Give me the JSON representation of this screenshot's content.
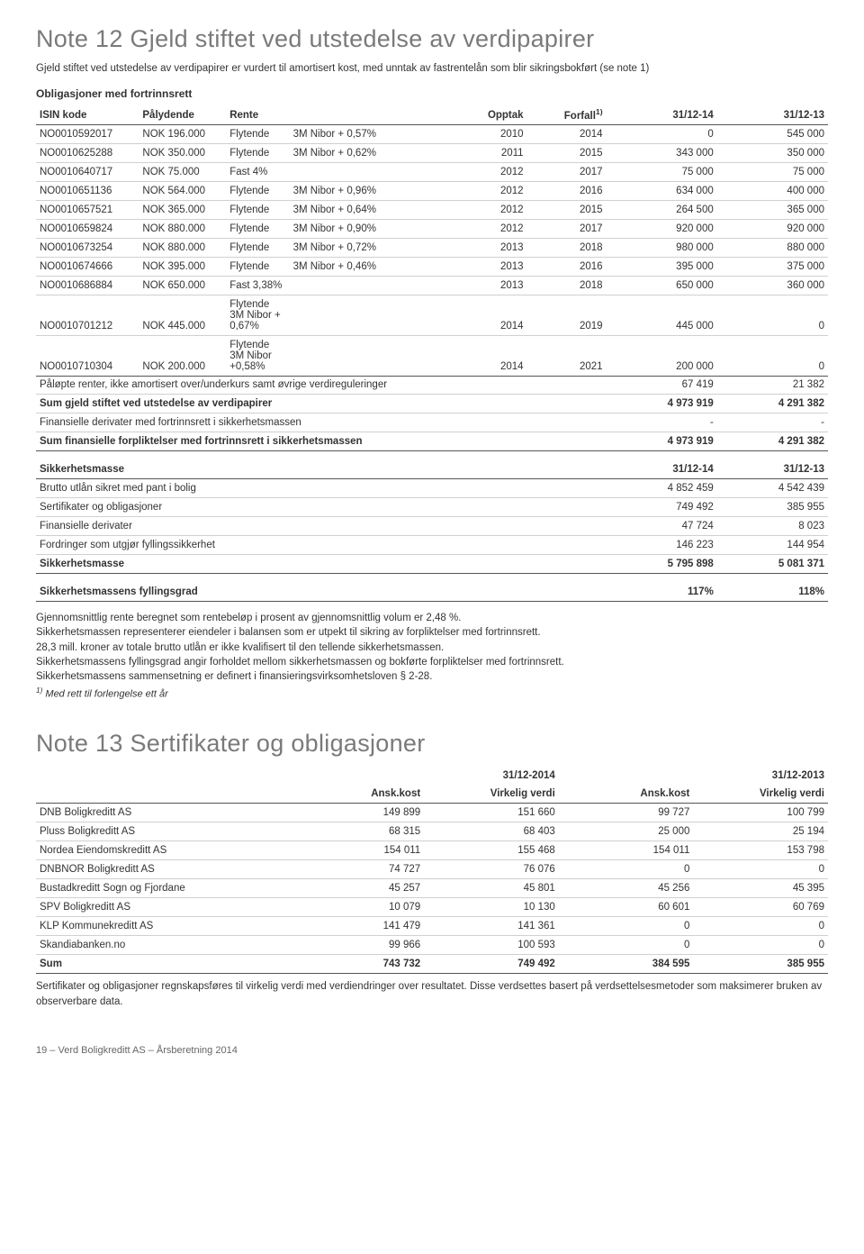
{
  "note12": {
    "title": "Note 12 Gjeld stiftet ved utstedelse av verdipapirer",
    "intro": "Gjeld stiftet ved utstedelse av verdipapirer er vurdert til amortisert kost, med unntak av fastrentelån som blir sikringsbokført (se note 1)",
    "subhead": "Obligasjoner med fortrinnsrett",
    "headers": {
      "isin": "ISIN kode",
      "palydende": "Pålydende",
      "rente": "Rente",
      "opptak": "Opptak",
      "forfall": "Forfall",
      "sup": "1)",
      "d1": "31/12-14",
      "d2": "31/12-13"
    },
    "rows": [
      {
        "isin": "NO0010592017",
        "pal": "NOK 196.000",
        "rk": "Flytende",
        "rv": "3M Nibor + 0,57%",
        "opptak": "2010",
        "forfall": "2014",
        "v1": "0",
        "v2": "545 000"
      },
      {
        "isin": "NO0010625288",
        "pal": "NOK 350.000",
        "rk": "Flytende",
        "rv": "3M Nibor + 0,62%",
        "opptak": "2011",
        "forfall": "2015",
        "v1": "343 000",
        "v2": "350 000"
      },
      {
        "isin": "NO0010640717",
        "pal": "NOK  75.000",
        "rk": "Fast 4%",
        "rv": "",
        "opptak": "2012",
        "forfall": "2017",
        "v1": "75 000",
        "v2": "75 000"
      },
      {
        "isin": "NO0010651136",
        "pal": "NOK 564.000",
        "rk": "Flytende",
        "rv": "3M Nibor + 0,96%",
        "opptak": "2012",
        "forfall": "2016",
        "v1": "634 000",
        "v2": "400 000"
      },
      {
        "isin": "NO0010657521",
        "pal": "NOK 365.000",
        "rk": "Flytende",
        "rv": "3M Nibor + 0,64%",
        "opptak": "2012",
        "forfall": "2015",
        "v1": "264 500",
        "v2": "365 000"
      },
      {
        "isin": "NO0010659824",
        "pal": "NOK 880.000",
        "rk": "Flytende",
        "rv": "3M Nibor + 0,90%",
        "opptak": "2012",
        "forfall": "2017",
        "v1": "920 000",
        "v2": "920 000"
      },
      {
        "isin": "NO0010673254",
        "pal": "NOK 880.000",
        "rk": "Flytende",
        "rv": "3M Nibor + 0,72%",
        "opptak": "2013",
        "forfall": "2018",
        "v1": "980 000",
        "v2": "880 000"
      },
      {
        "isin": "NO0010674666",
        "pal": "NOK 395.000",
        "rk": "Flytende",
        "rv": "3M Nibor + 0,46%",
        "opptak": "2013",
        "forfall": "2016",
        "v1": "395 000",
        "v2": "375 000"
      },
      {
        "isin": "NO0010686884",
        "pal": "NOK 650.000",
        "rk": "Fast 3,38%",
        "rv": "",
        "opptak": "2013",
        "forfall": "2018",
        "v1": "650 000",
        "v2": "360 000"
      },
      {
        "isin": "NO0010701212",
        "pal": "NOK 445.000",
        "rk": "Flytende 3M Nibor + 0,67%",
        "rv": "",
        "opptak": "2014",
        "forfall": "2019",
        "v1": "445 000",
        "v2": "0"
      },
      {
        "isin": "NO0010710304",
        "pal": "NOK 200.000",
        "rk": "Flytende 3M Nibor +0,58%",
        "rv": "",
        "opptak": "2014",
        "forfall": "2021",
        "v1": "200 000",
        "v2": "0"
      }
    ],
    "sumrows": [
      {
        "label": "Påløpte renter, ikke amortisert over/underkurs samt øvrige verdireguleringer",
        "v1": "67 419",
        "v2": "21 382",
        "bold": false
      },
      {
        "label": "Sum gjeld stiftet ved utstedelse av verdipapirer",
        "v1": "4 973 919",
        "v2": "4 291 382",
        "bold": true
      },
      {
        "label": "Finansielle derivater med fortrinnsrett i sikkerhetsmassen",
        "v1": "-",
        "v2": "-",
        "bold": false
      },
      {
        "label": "Sum finansielle forpliktelser med fortrinnsrett i sikkerhetsmassen",
        "v1": "4 973 919",
        "v2": "4 291 382",
        "bold": true
      }
    ],
    "sikkerhead": {
      "label": "Sikkerhetsmasse",
      "d1": "31/12-14",
      "d2": "31/12-13"
    },
    "sikker": [
      {
        "label": "Brutto utlån sikret med pant i bolig",
        "v1": "4 852 459",
        "v2": "4 542 439"
      },
      {
        "label": "Sertifikater og obligasjoner",
        "v1": "749 492",
        "v2": "385 955"
      },
      {
        "label": "Finansielle derivater",
        "v1": "47 724",
        "v2": "8 023"
      },
      {
        "label": "Fordringer som utgjør fyllingssikkerhet",
        "v1": "146 223",
        "v2": "144 954"
      }
    ],
    "sikkertotal": {
      "label": "Sikkerhetsmasse",
      "v1": "5 795 898",
      "v2": "5 081 371"
    },
    "fylling": {
      "label": "Sikkerhetsmassens fyllingsgrad",
      "v1": "117%",
      "v2": "118%"
    },
    "paragraphs": [
      "Gjennomsnittlig rente beregnet som rentebeløp i prosent av gjennomsnittlig volum er 2,48 %.",
      "Sikkerhetsmassen representerer eiendeler i balansen som er utpekt til sikring av forpliktelser med fortrinnsrett.",
      "28,3 mill. kroner av totale brutto utlån er ikke kvalifisert til den tellende sikkerhetsmassen.",
      "Sikkerhetsmassens fyllingsgrad angir forholdet mellom sikkerhetsmassen og bokførte forpliktelser med fortrinnsrett.",
      "Sikkerhetsmassens sammensetning er definert i finansieringsvirksomhetsloven § 2-28."
    ],
    "footnote": "1) Med rett til forlengelse ett år"
  },
  "note13": {
    "title": "Note 13 Sertifikater og obligasjoner",
    "headers": {
      "g1": "31/12-2014",
      "g2": "31/12-2013",
      "ansk": "Ansk.kost",
      "virk": "Virkelig verdi"
    },
    "rows": [
      {
        "n": "DNB Boligkreditt AS",
        "a1": "149 899",
        "v1": "151 660",
        "a2": "99 727",
        "v2": "100 799"
      },
      {
        "n": "Pluss Boligkreditt AS",
        "a1": "68 315",
        "v1": "68 403",
        "a2": "25 000",
        "v2": "25 194"
      },
      {
        "n": "Nordea Eiendomskreditt AS",
        "a1": "154 011",
        "v1": "155 468",
        "a2": "154 011",
        "v2": "153 798"
      },
      {
        "n": "DNBNOR Boligkreditt AS",
        "a1": "74 727",
        "v1": "76 076",
        "a2": "0",
        "v2": "0"
      },
      {
        "n": "Bustadkreditt Sogn og Fjordane",
        "a1": "45 257",
        "v1": "45 801",
        "a2": "45 256",
        "v2": "45 395"
      },
      {
        "n": "SPV Boligkreditt AS",
        "a1": "10 079",
        "v1": "10 130",
        "a2": "60 601",
        "v2": "60 769"
      },
      {
        "n": "KLP Kommunekreditt AS",
        "a1": "141 479",
        "v1": "141 361",
        "a2": "0",
        "v2": "0"
      },
      {
        "n": "Skandiabanken.no",
        "a1": "99 966",
        "v1": "100 593",
        "a2": "0",
        "v2": "0"
      }
    ],
    "sum": {
      "n": "Sum",
      "a1": "743 732",
      "v1": "749 492",
      "a2": "384 595",
      "v2": "385 955"
    },
    "para": "Sertifikater og obligasjoner regnskapsføres til virkelig verdi med verdiendringer over resultatet. Disse verdsettes basert på verdsettelsesmetoder som maksimerer bruken av observerbare data."
  },
  "pagefoot": "19 – Verd Boligkreditt AS – Årsberetning 2014"
}
